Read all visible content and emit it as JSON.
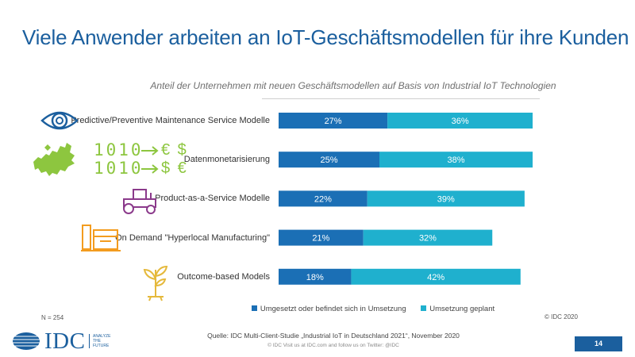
{
  "header": {
    "title": "Viele Anwender arbeiten an IoT-Geschäftsmodellen für ihre Kunden"
  },
  "chart_data": {
    "type": "bar",
    "orientation": "horizontal",
    "stacked": true,
    "title": "Anteil der Unternehmen mit neuen Geschäftsmodellen auf Basis von Industrial IoT Technologien",
    "categories": [
      "Predictive/Preventive Maintenance Service Modelle",
      "Datenmonetarisierung",
      "Product-as-a-Service Modelle",
      "On Demand \"Hyperlocal Manufacturing\"",
      "Outcome-based Models"
    ],
    "series": [
      {
        "name": "Umgesetzt oder befindet sich in Umsetzung",
        "color": "#1b6fb5",
        "values": [
          27,
          25,
          22,
          21,
          18
        ]
      },
      {
        "name": "Umsetzung geplant",
        "color": "#1fb0ce",
        "values": [
          36,
          38,
          39,
          32,
          42
        ]
      }
    ],
    "data_labels": [
      [
        "27%",
        "25%",
        "22%",
        "21%",
        "18%"
      ],
      [
        "36%",
        "38%",
        "39%",
        "32%",
        "42%"
      ]
    ],
    "xlim": [
      0,
      63
    ],
    "legend_position": "bottom",
    "grid": false
  },
  "icons": [
    "eye-icon",
    "europe-map-icon",
    "tractor-icon",
    "factory-machine-icon",
    "plant-icon"
  ],
  "icon_text": {
    "binary_top": "1010",
    "binary_bottom": "1010",
    "currency_top": "€ $",
    "currency_bottom": "$ €"
  },
  "footer": {
    "sample_size": "N = 254",
    "copyright": "© IDC 2020",
    "source": "Quelle: IDC Multi-Client-Studie „Industrial IoT in Deutschland 2021“, November 2020",
    "footer_line": "© IDC    Visit us at IDC.com and follow us on Twitter: @IDC",
    "logo_text": "IDC",
    "tagline_1": "ANALYZE",
    "tagline_2": "THE",
    "tagline_3": "FUTURE",
    "page_number": "14"
  }
}
